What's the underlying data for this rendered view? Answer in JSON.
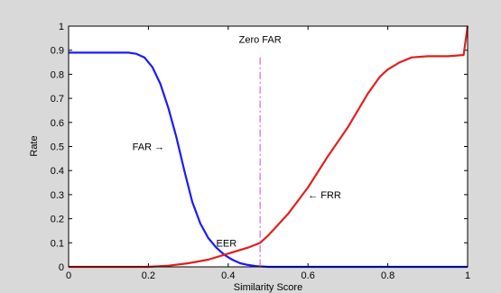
{
  "chart_data": {
    "type": "line",
    "title": "",
    "xlabel": "Similarity Score",
    "ylabel": "Rate",
    "xlim": [
      0,
      1
    ],
    "ylim": [
      0,
      1
    ],
    "x_ticks": [
      0,
      0.2,
      0.4,
      0.6,
      0.8,
      1
    ],
    "x_tick_labels": [
      "0",
      "0.2",
      "0.4",
      "0.6",
      "0.8",
      "1"
    ],
    "y_ticks": [
      0,
      0.1,
      0.2,
      0.3,
      0.4,
      0.5,
      0.6,
      0.7,
      0.8,
      0.9,
      1
    ],
    "y_tick_labels": [
      "0",
      "0.1",
      "0.2",
      "0.3",
      "0.4",
      "0.5",
      "0.6",
      "0.7",
      "0.8",
      "0.9",
      "1"
    ],
    "grid": false,
    "series": [
      {
        "name": "FAR",
        "color": "#1a1aff",
        "x": [
          0,
          0.1,
          0.15,
          0.17,
          0.19,
          0.21,
          0.23,
          0.25,
          0.27,
          0.29,
          0.31,
          0.33,
          0.35,
          0.37,
          0.39,
          0.41,
          0.43,
          0.45,
          0.47,
          0.5,
          0.55,
          0.6,
          0.7,
          0.8,
          0.9,
          1
        ],
        "y": [
          0.89,
          0.89,
          0.89,
          0.885,
          0.87,
          0.83,
          0.76,
          0.66,
          0.54,
          0.4,
          0.27,
          0.18,
          0.12,
          0.08,
          0.05,
          0.03,
          0.015,
          0.008,
          0.003,
          0,
          0,
          0,
          0,
          0,
          0,
          0
        ]
      },
      {
        "name": "FRR",
        "color": "#e0201c",
        "x": [
          0,
          0.2,
          0.25,
          0.3,
          0.35,
          0.4,
          0.45,
          0.48,
          0.5,
          0.55,
          0.6,
          0.65,
          0.7,
          0.75,
          0.78,
          0.8,
          0.83,
          0.86,
          0.9,
          0.95,
          0.99,
          1
        ],
        "y": [
          0,
          0,
          0.005,
          0.015,
          0.03,
          0.055,
          0.08,
          0.1,
          0.13,
          0.22,
          0.33,
          0.46,
          0.58,
          0.72,
          0.79,
          0.82,
          0.85,
          0.87,
          0.875,
          0.875,
          0.88,
          1
        ]
      }
    ],
    "reference_line": {
      "label": "Zero FAR",
      "x": 0.48,
      "color": "#d966d9",
      "style": "dash-dot"
    },
    "annotations": [
      {
        "text": "FAR",
        "arrow": "→",
        "x": 0.24,
        "y": 0.5
      },
      {
        "text": "FRR",
        "arrow": "←",
        "x": 0.6,
        "y": 0.3
      },
      {
        "text": "EER",
        "x": 0.37,
        "y": 0.1
      }
    ]
  }
}
